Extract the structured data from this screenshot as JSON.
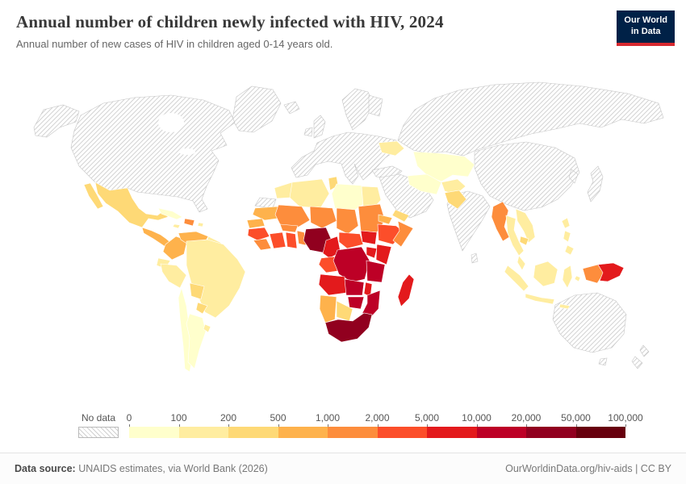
{
  "header": {
    "title": "Annual number of children newly infected with HIV, 2024",
    "subtitle": "Annual number of new cases of HIV in children aged 0-14 years old.",
    "logo": {
      "line1": "Our World",
      "line2": "in Data",
      "bg_color": "#002147",
      "accent_color": "#d7282f"
    }
  },
  "legend": {
    "no_data_label": "No data",
    "ticks": [
      "0",
      "100",
      "200",
      "500",
      "1,000",
      "2,000",
      "5,000",
      "10,000",
      "20,000",
      "50,000",
      "100,000"
    ],
    "colors": [
      "#ffffcc",
      "#ffeda0",
      "#fed976",
      "#feb24c",
      "#fd8d3c",
      "#fc4e2a",
      "#e31a1c",
      "#bd0026",
      "#91001f",
      "#67000d"
    ]
  },
  "footer": {
    "source_label": "Data source:",
    "source_text": "UNAIDS estimates, via World Bank (2026)",
    "link_text": "OurWorldinData.org/hiv-aids | CC BY"
  },
  "chart_data": {
    "type": "choropleth",
    "title": "Annual number of children newly infected with HIV, 2024",
    "subtitle": "Annual number of new cases of HIV in children aged 0-14 years old.",
    "year": "2024",
    "legend_ticks": [
      "0",
      "100",
      "200",
      "500",
      "1,000",
      "2,000",
      "5,000",
      "10,000",
      "20,000",
      "50,000",
      "100,000"
    ],
    "bin_ranges": [
      "0-100",
      "100-200",
      "200-500",
      "500-1,000",
      "1,000-2,000",
      "2,000-5,000",
      "5,000-10,000",
      "10,000-20,000",
      "20,000-50,000",
      "50,000-100,000"
    ],
    "no_data_label": "No data",
    "regions": [
      {
        "id": "greenland",
        "name": "Greenland",
        "bin": null
      },
      {
        "id": "iceland",
        "name": "Iceland",
        "bin": null
      },
      {
        "id": "alaska",
        "name": "Alaska (United States)",
        "bin": null
      },
      {
        "id": "canada-usa",
        "name": "Canada and United States",
        "bin": null
      },
      {
        "id": "europe",
        "name": "Europe (most countries)",
        "bin": null
      },
      {
        "id": "uk",
        "name": "United Kingdom",
        "bin": null
      },
      {
        "id": "ireland",
        "name": "Ireland",
        "bin": null
      },
      {
        "id": "scandinavia",
        "name": "Scandinavia",
        "bin": null
      },
      {
        "id": "finland",
        "name": "Finland",
        "bin": null
      },
      {
        "id": "russia",
        "name": "Russia",
        "bin": null
      },
      {
        "id": "turkey",
        "name": "Turkey",
        "bin": null
      },
      {
        "id": "saudi-peninsula",
        "name": "Arabian Peninsula and Levant",
        "bin": null
      },
      {
        "id": "india",
        "name": "India",
        "bin": null
      },
      {
        "id": "sri-lanka",
        "name": "Sri Lanka",
        "bin": null
      },
      {
        "id": "china-mongolia",
        "name": "China and Mongolia",
        "bin": null
      },
      {
        "id": "korea",
        "name": "Korea",
        "bin": null
      },
      {
        "id": "japan",
        "name": "Japan",
        "bin": null
      },
      {
        "id": "australia",
        "name": "Australia",
        "bin": null
      },
      {
        "id": "tasmania",
        "name": "Tasmania",
        "bin": null
      },
      {
        "id": "new-zealand",
        "name": "New Zealand",
        "bin": null
      },
      {
        "id": "western-sahara",
        "name": "Western Sahara",
        "bin": null
      },
      {
        "id": "mexico",
        "name": "Mexico",
        "bin": 2
      },
      {
        "id": "central-america",
        "name": "Central America",
        "bin": 3
      },
      {
        "id": "cuba",
        "name": "Cuba",
        "bin": 0
      },
      {
        "id": "jamaica",
        "name": "Jamaica",
        "bin": 1
      },
      {
        "id": "hispaniola",
        "name": "Haiti and Dominican Republic",
        "bin": 4
      },
      {
        "id": "puerto-rico",
        "name": "Puerto Rico",
        "bin": 1
      },
      {
        "id": "colombia",
        "name": "Colombia",
        "bin": 3
      },
      {
        "id": "venezuela",
        "name": "Venezuela",
        "bin": 3
      },
      {
        "id": "guyanas",
        "name": "Guyanas",
        "bin": 1
      },
      {
        "id": "ecuador",
        "name": "Ecuador",
        "bin": 1
      },
      {
        "id": "peru",
        "name": "Peru",
        "bin": 1
      },
      {
        "id": "brazil",
        "name": "Brazil",
        "bin": 1
      },
      {
        "id": "bolivia",
        "name": "Bolivia",
        "bin": 2
      },
      {
        "id": "paraguay",
        "name": "Paraguay",
        "bin": 2
      },
      {
        "id": "chile",
        "name": "Chile",
        "bin": 0
      },
      {
        "id": "argentina",
        "name": "Argentina",
        "bin": 0
      },
      {
        "id": "uruguay",
        "name": "Uruguay",
        "bin": 1
      },
      {
        "id": "ukraine",
        "name": "Ukraine",
        "bin": 1
      },
      {
        "id": "kazakhstan-central-asia",
        "name": "Kazakhstan and Central Asia",
        "bin": 0
      },
      {
        "id": "iran",
        "name": "Iran",
        "bin": 0
      },
      {
        "id": "afghanistan",
        "name": "Afghanistan",
        "bin": 1
      },
      {
        "id": "pakistan",
        "name": "Pakistan",
        "bin": 2
      },
      {
        "id": "yemen",
        "name": "Yemen",
        "bin": 2
      },
      {
        "id": "myanmar",
        "name": "Myanmar",
        "bin": 4
      },
      {
        "id": "thailand",
        "name": "Thailand",
        "bin": 1
      },
      {
        "id": "vietnam-laos",
        "name": "Vietnam and Laos",
        "bin": 1
      },
      {
        "id": "cambodia",
        "name": "Cambodia",
        "bin": 2
      },
      {
        "id": "malaysia",
        "name": "Malaysia",
        "bin": 1
      },
      {
        "id": "sumatra",
        "name": "Sumatra (Indonesia)",
        "bin": 1
      },
      {
        "id": "java",
        "name": "Java (Indonesia)",
        "bin": 1
      },
      {
        "id": "borneo",
        "name": "Borneo",
        "bin": 1
      },
      {
        "id": "sulawesi",
        "name": "Sulawesi (Indonesia)",
        "bin": 1
      },
      {
        "id": "lesser-sunda",
        "name": "Lesser Sunda Islands",
        "bin": 1
      },
      {
        "id": "maluku",
        "name": "Maluku Islands",
        "bin": 1
      },
      {
        "id": "philippines",
        "name": "Philippines",
        "bin": 1
      },
      {
        "id": "west-new-guinea",
        "name": "Indonesian New Guinea",
        "bin": 4
      },
      {
        "id": "papua-new-guinea",
        "name": "Papua New Guinea",
        "bin": 6
      },
      {
        "id": "morocco",
        "name": "Morocco",
        "bin": 1
      },
      {
        "id": "algeria",
        "name": "Algeria",
        "bin": 1
      },
      {
        "id": "tunisia",
        "name": "Tunisia",
        "bin": 2
      },
      {
        "id": "libya",
        "name": "Libya",
        "bin": 0
      },
      {
        "id": "egypt",
        "name": "Egypt",
        "bin": 1
      },
      {
        "id": "mauritania",
        "name": "Mauritania",
        "bin": 3
      },
      {
        "id": "mali",
        "name": "Mali",
        "bin": 4
      },
      {
        "id": "niger",
        "name": "Niger",
        "bin": 4
      },
      {
        "id": "chad",
        "name": "Chad",
        "bin": 4
      },
      {
        "id": "sudan",
        "name": "Sudan",
        "bin": 4
      },
      {
        "id": "eritrea-djibouti",
        "name": "Eritrea and Djibouti",
        "bin": 3
      },
      {
        "id": "senegal",
        "name": "Senegal and Gambia",
        "bin": 3
      },
      {
        "id": "guinea",
        "name": "Guinea and Guinea-Bissau",
        "bin": 5
      },
      {
        "id": "sierra-leone-liberia",
        "name": "Sierra Leone and Liberia",
        "bin": 4
      },
      {
        "id": "cote-divoire",
        "name": "Côte d'Ivoire",
        "bin": 5
      },
      {
        "id": "ghana",
        "name": "Ghana",
        "bin": 5
      },
      {
        "id": "togo-benin",
        "name": "Togo and Benin",
        "bin": 4
      },
      {
        "id": "burkina-faso",
        "name": "Burkina Faso",
        "bin": 4
      },
      {
        "id": "nigeria",
        "name": "Nigeria",
        "bin": 8
      },
      {
        "id": "cameroon",
        "name": "Cameroon",
        "bin": 6
      },
      {
        "id": "car",
        "name": "Central African Republic",
        "bin": 5
      },
      {
        "id": "south-sudan",
        "name": "South Sudan",
        "bin": 6
      },
      {
        "id": "ethiopia",
        "name": "Ethiopia",
        "bin": 5
      },
      {
        "id": "somalia",
        "name": "Somalia",
        "bin": 4
      },
      {
        "id": "gabon-congo",
        "name": "Gabon and Congo",
        "bin": 5
      },
      {
        "id": "drc",
        "name": "Democratic Republic of Congo",
        "bin": 7
      },
      {
        "id": "uganda",
        "name": "Uganda",
        "bin": 6
      },
      {
        "id": "kenya",
        "name": "Kenya",
        "bin": 6
      },
      {
        "id": "tanzania",
        "name": "Tanzania",
        "bin": 7
      },
      {
        "id": "angola",
        "name": "Angola",
        "bin": 6
      },
      {
        "id": "zambia",
        "name": "Zambia",
        "bin": 7
      },
      {
        "id": "malawi",
        "name": "Malawi",
        "bin": 6
      },
      {
        "id": "mozambique",
        "name": "Mozambique",
        "bin": 7
      },
      {
        "id": "zimbabwe",
        "name": "Zimbabwe",
        "bin": 7
      },
      {
        "id": "botswana",
        "name": "Botswana",
        "bin": 2
      },
      {
        "id": "namibia",
        "name": "Namibia",
        "bin": 3
      },
      {
        "id": "south-africa",
        "name": "South Africa",
        "bin": 8
      },
      {
        "id": "madagascar",
        "name": "Madagascar",
        "bin": 6
      }
    ]
  }
}
